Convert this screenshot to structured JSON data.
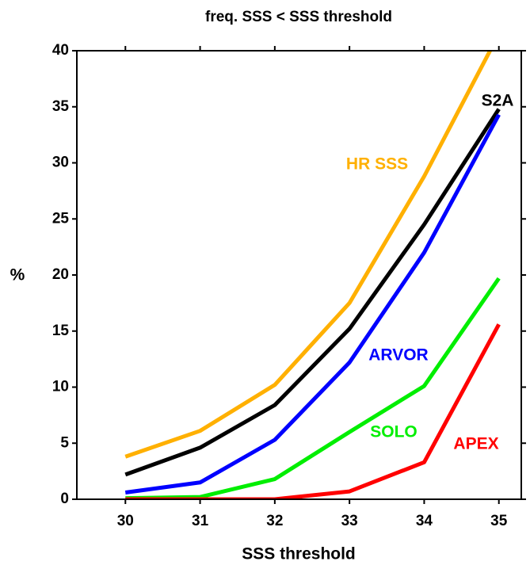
{
  "chart_data": {
    "type": "line",
    "title": "freq. SSS < SSS threshold",
    "x_label": "SSS threshold",
    "y_label": "%",
    "x": [
      30,
      31,
      32,
      33,
      34,
      35
    ],
    "xlim": [
      29.35,
      35.3
    ],
    "ylim": [
      0,
      40
    ],
    "xticks": [
      30,
      31,
      32,
      33,
      34,
      35
    ],
    "yticks": [
      0,
      5,
      10,
      15,
      20,
      25,
      30,
      35,
      40
    ],
    "series": [
      {
        "name": "HR SSS",
        "color": "#ffb000",
        "values": [
          3.8,
          6.1,
          10.2,
          17.5,
          28.8,
          41.5
        ]
      },
      {
        "name": "S2A",
        "color": "#000000",
        "values": [
          2.2,
          4.6,
          8.4,
          15.2,
          24.5,
          34.8
        ]
      },
      {
        "name": "ARVOR",
        "color": "#0000ff",
        "values": [
          0.6,
          1.5,
          5.3,
          12.2,
          22.0,
          34.3
        ]
      },
      {
        "name": "SOLO",
        "color": "#00ee00",
        "values": [
          0.1,
          0.2,
          1.8,
          6.0,
          10.1,
          19.7
        ]
      },
      {
        "name": "APEX",
        "color": "#ff0000",
        "values": [
          0.0,
          0.0,
          0.0,
          0.7,
          3.3,
          15.6
        ]
      }
    ]
  }
}
